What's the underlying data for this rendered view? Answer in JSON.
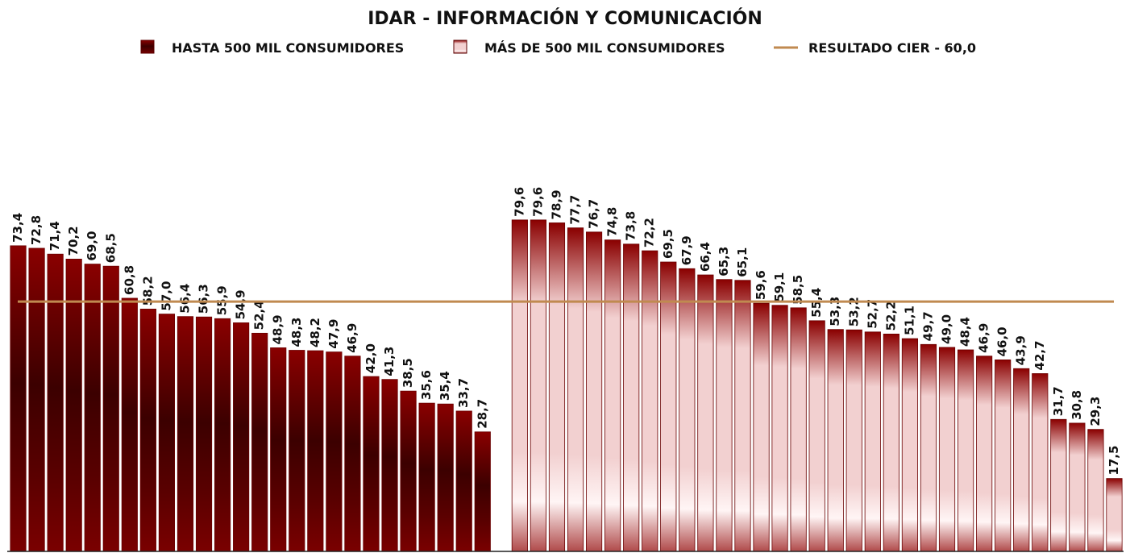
{
  "chart_data": {
    "type": "bar",
    "title": "IDAR - INFORMACIÓN Y COMUNICACIÓN",
    "ylim": [
      0,
      115
    ],
    "series": [
      {
        "name": "HASTA 500 MIL CONSUMIDORES",
        "color": "#7a0000",
        "values": [
          73.4,
          72.8,
          71.4,
          70.2,
          69.0,
          68.5,
          60.8,
          58.2,
          57.0,
          56.4,
          56.3,
          55.9,
          54.9,
          52.4,
          48.9,
          48.3,
          48.2,
          47.9,
          46.9,
          42.0,
          41.3,
          38.5,
          35.6,
          35.4,
          33.7,
          28.7,
          null,
          null,
          null,
          null,
          null,
          null,
          null,
          null,
          null,
          null,
          null,
          null,
          null,
          null,
          null,
          null,
          null,
          null,
          null,
          null,
          null,
          null,
          null,
          null,
          null,
          null,
          null,
          null,
          null,
          null,
          null,
          null,
          null,
          null
        ],
        "value_labels": [
          "73,4",
          "72,8",
          "71,4",
          "70,2",
          "69,0",
          "68,5",
          "60,8",
          "58,2",
          "57,0",
          "56,4",
          "56,3",
          "55,9",
          "54,9",
          "52,4",
          "48,9",
          "48,3",
          "48,2",
          "47,9",
          "46,9",
          "42,0",
          "41,3",
          "38,5",
          "35,6",
          "35,4",
          "33,7",
          "28,7",
          null,
          null,
          null,
          null,
          null,
          null,
          null,
          null,
          null,
          null,
          null,
          null,
          null,
          null,
          null,
          null,
          null,
          null,
          null,
          null,
          null,
          null,
          null,
          null,
          null,
          null,
          null,
          null,
          null,
          null,
          null,
          null,
          null,
          null
        ]
      },
      {
        "name": "MÁS DE 500 MIL CONSUMIDORES",
        "color": "#f2d0d0",
        "values": [
          null,
          null,
          null,
          null,
          null,
          null,
          null,
          null,
          null,
          null,
          null,
          null,
          null,
          null,
          null,
          null,
          null,
          null,
          null,
          null,
          null,
          null,
          null,
          null,
          null,
          null,
          null,
          79.6,
          79.6,
          78.9,
          77.7,
          76.7,
          74.8,
          73.8,
          72.2,
          69.5,
          67.9,
          66.4,
          65.3,
          65.1,
          59.6,
          59.1,
          58.5,
          55.4,
          53.3,
          53.2,
          52.7,
          52.2,
          51.1,
          49.7,
          49.0,
          48.4,
          46.9,
          46.0,
          43.9,
          42.7,
          31.7,
          30.8,
          29.3,
          17.5
        ],
        "value_labels": [
          null,
          null,
          null,
          null,
          null,
          null,
          null,
          null,
          null,
          null,
          null,
          null,
          null,
          null,
          null,
          null,
          null,
          null,
          null,
          null,
          null,
          null,
          null,
          null,
          null,
          null,
          null,
          "79,6",
          "79,6",
          "78,9",
          "77,7",
          "76,7",
          "74,8",
          "73,8",
          "72,2",
          "69,5",
          "67,9",
          "66,4",
          "65,3",
          "65,1",
          "59,6",
          "59,1",
          "58,5",
          "55,4",
          "53,3",
          "53,2",
          "52,7",
          "52,2",
          "51,1",
          "49,7",
          "49,0",
          "48,4",
          "46,9",
          "46,0",
          "43,9",
          "42,7",
          "31,7",
          "30,8",
          "29,3",
          "17,5"
        ]
      }
    ],
    "reference_line": {
      "name": "RESULTADO CIER - 60,0",
      "value": 60.0,
      "color": "#c08a50"
    }
  }
}
